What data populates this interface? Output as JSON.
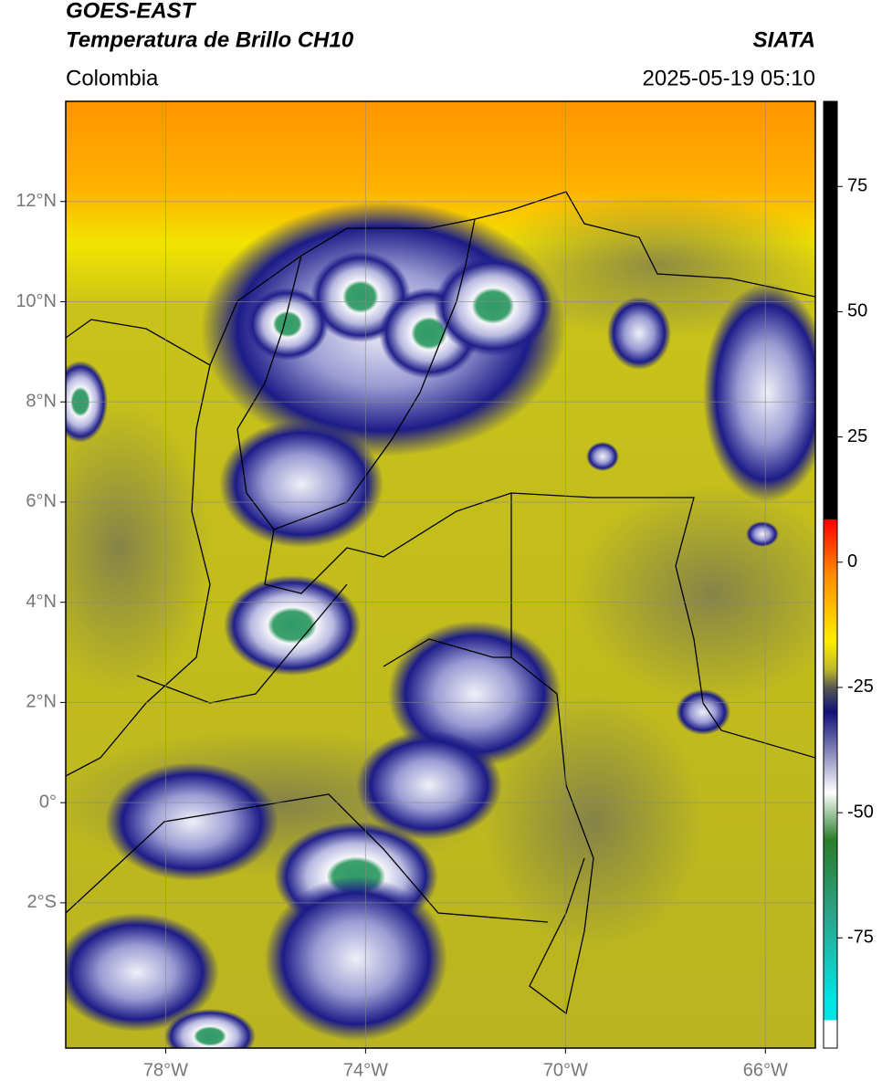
{
  "header": {
    "title": "GOES-EAST",
    "subtitle": "Temperatura de Brillo CH10",
    "source": "SIATA",
    "region": "Colombia",
    "datetime": "2025-05-19 05:10"
  },
  "map": {
    "xlim": [
      -80,
      -65
    ],
    "ylim": [
      -4.9,
      14
    ],
    "xticks": [
      {
        "value": -78,
        "label": "78°W"
      },
      {
        "value": -74,
        "label": "74°W"
      },
      {
        "value": -70,
        "label": "70°W"
      },
      {
        "value": -66,
        "label": "66°W"
      }
    ],
    "yticks": [
      {
        "value": 12,
        "label": "12°N"
      },
      {
        "value": 10,
        "label": "10°N"
      },
      {
        "value": 8,
        "label": "8°N"
      },
      {
        "value": 6,
        "label": "6°N"
      },
      {
        "value": 4,
        "label": "4°N"
      },
      {
        "value": 2,
        "label": "2°N"
      },
      {
        "value": 0,
        "label": "0°"
      },
      {
        "value": -2,
        "label": "2°S"
      }
    ],
    "grid": true
  },
  "colorbar": {
    "ylim": [
      -97,
      92
    ],
    "yticks": [
      75,
      50,
      25,
      0,
      -25,
      -50,
      -75
    ]
  }
}
